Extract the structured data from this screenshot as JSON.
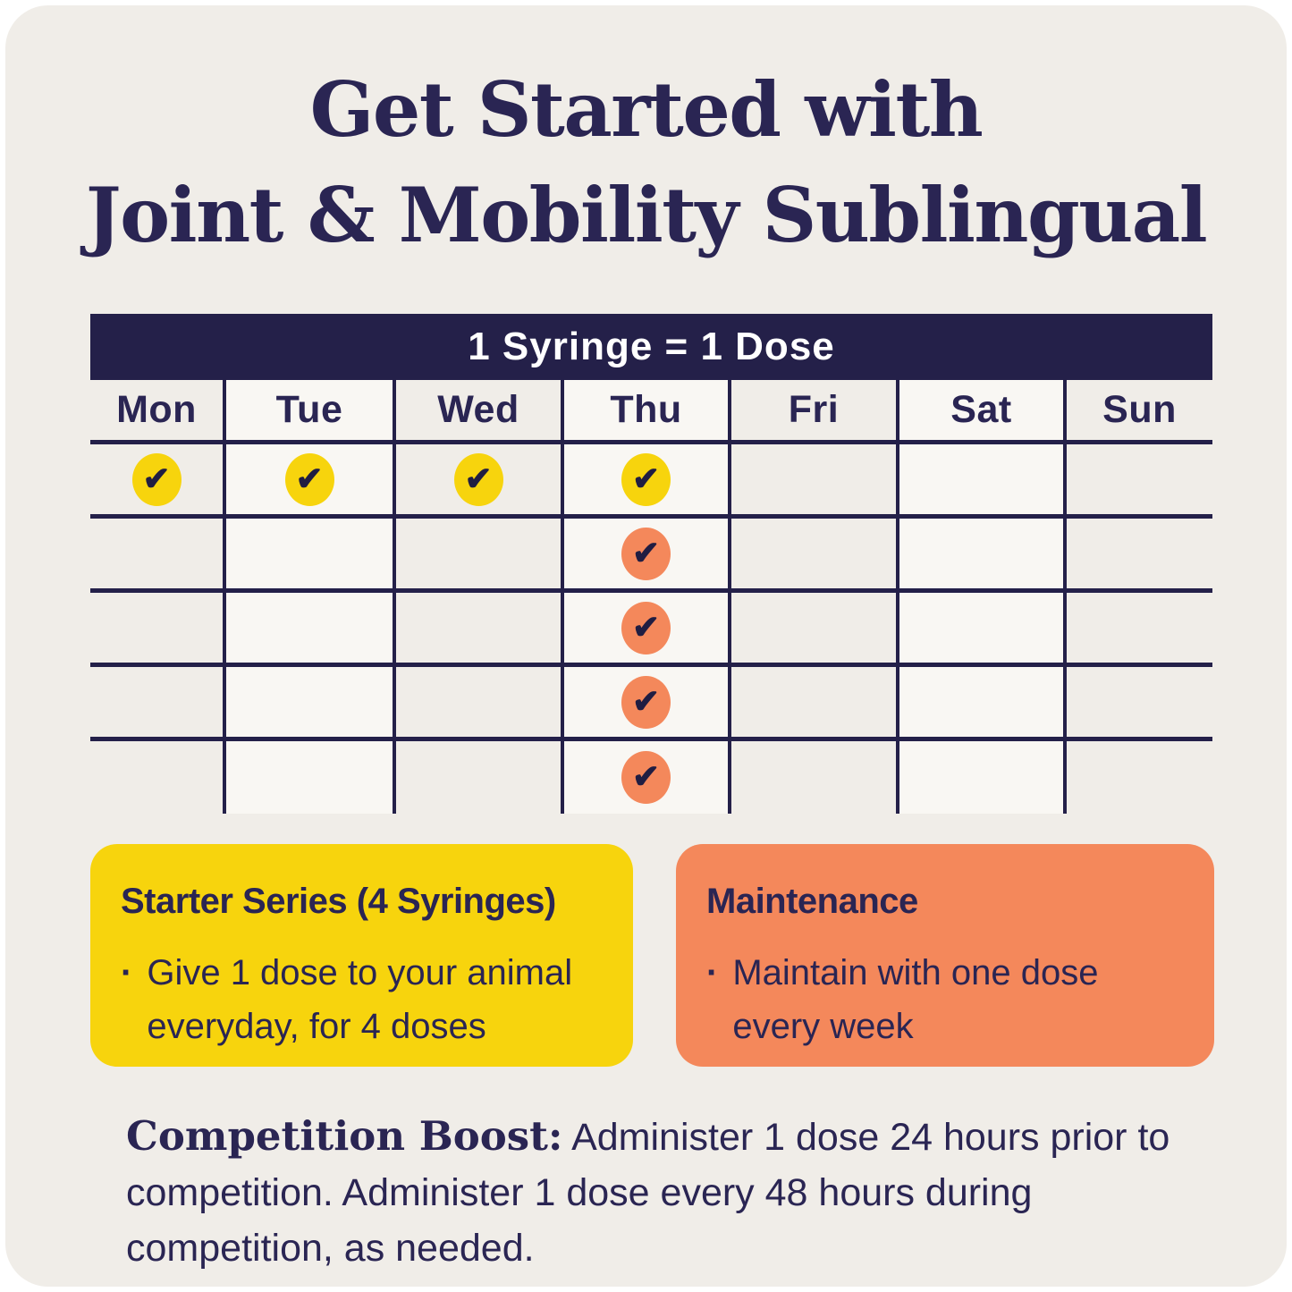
{
  "colors": {
    "navy": "#242049",
    "navy_text": "#2a2553",
    "card_background": "#f0ede8",
    "cell_light": "#f9f7f3",
    "yellow": "#f7d40d",
    "orange": "#f4885b",
    "check_ink": "#201d42",
    "header_text": "#ffffff"
  },
  "title": {
    "line1": "Get Started with",
    "line2": "Joint & Mobility Sublingual"
  },
  "table": {
    "header_label": "1 Syringe = 1 Dose",
    "days": [
      "Mon",
      "Tue",
      "Wed",
      "Thu",
      "Fri",
      "Sat",
      "Sun"
    ],
    "rows": [
      [
        "yellow",
        "yellow",
        "yellow",
        "yellow",
        "",
        "",
        ""
      ],
      [
        "",
        "",
        "",
        "orange",
        "",
        "",
        ""
      ],
      [
        "",
        "",
        "",
        "orange",
        "",
        "",
        ""
      ],
      [
        "",
        "",
        "",
        "orange",
        "",
        "",
        ""
      ],
      [
        "",
        "",
        "",
        "orange",
        "",
        "",
        ""
      ]
    ]
  },
  "icons": {
    "check": "✔"
  },
  "bullet_char": "·",
  "starter_box": {
    "title": "Starter Series (4 Syringes)",
    "bullet": "Give 1 dose to your animal everyday, for 4 doses"
  },
  "maintenance_box": {
    "title": "Maintenance",
    "bullet": "Maintain with one dose every week"
  },
  "footer": {
    "label": "Competition Boost:",
    "text": "Administer 1 dose 24 hours prior to competition. Administer 1 dose every 48 hours during competition, as needed."
  }
}
